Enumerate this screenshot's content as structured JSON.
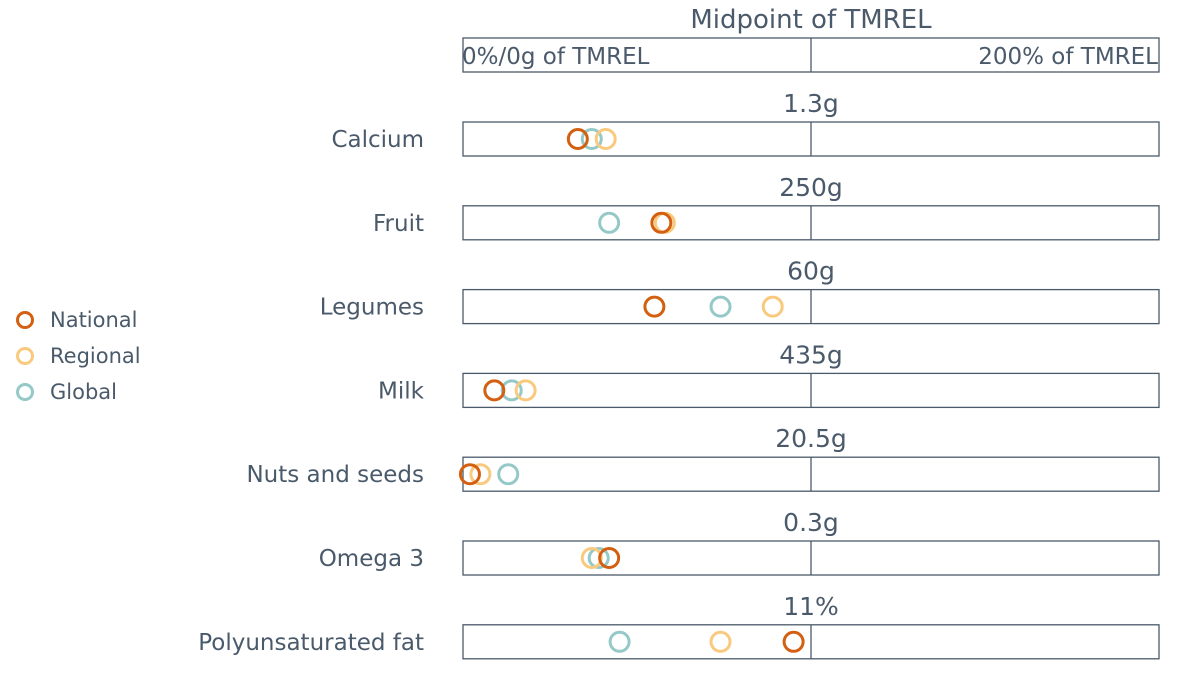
{
  "chart_data": {
    "type": "scatter",
    "title": "Midpoint of TMREL",
    "scale_labels": {
      "left": "0%/0g of TMREL",
      "right": "200% of TMREL"
    },
    "x_range_percent_of_tmrel": [
      0,
      200
    ],
    "grid": false,
    "legend_position": "left",
    "categories": [
      "Calcium",
      "Fruit",
      "Legumes",
      "Milk",
      "Nuts and seeds",
      "Omega 3",
      "Polyunsaturated fat"
    ],
    "midpoints": [
      "1.3g",
      "250g",
      "60g",
      "435g",
      "20.5g",
      "0.3g",
      "11%"
    ],
    "series": [
      {
        "name": "National",
        "color": "#d35f10",
        "values": [
          33,
          57,
          55,
          9,
          2,
          42,
          95
        ]
      },
      {
        "name": "Regional",
        "color": "#f9c97e",
        "values": [
          41,
          58,
          89,
          18,
          5,
          37,
          74
        ]
      },
      {
        "name": "Global",
        "color": "#95c9c8",
        "values": [
          37,
          42,
          74,
          14,
          13,
          39,
          45
        ]
      }
    ]
  }
}
